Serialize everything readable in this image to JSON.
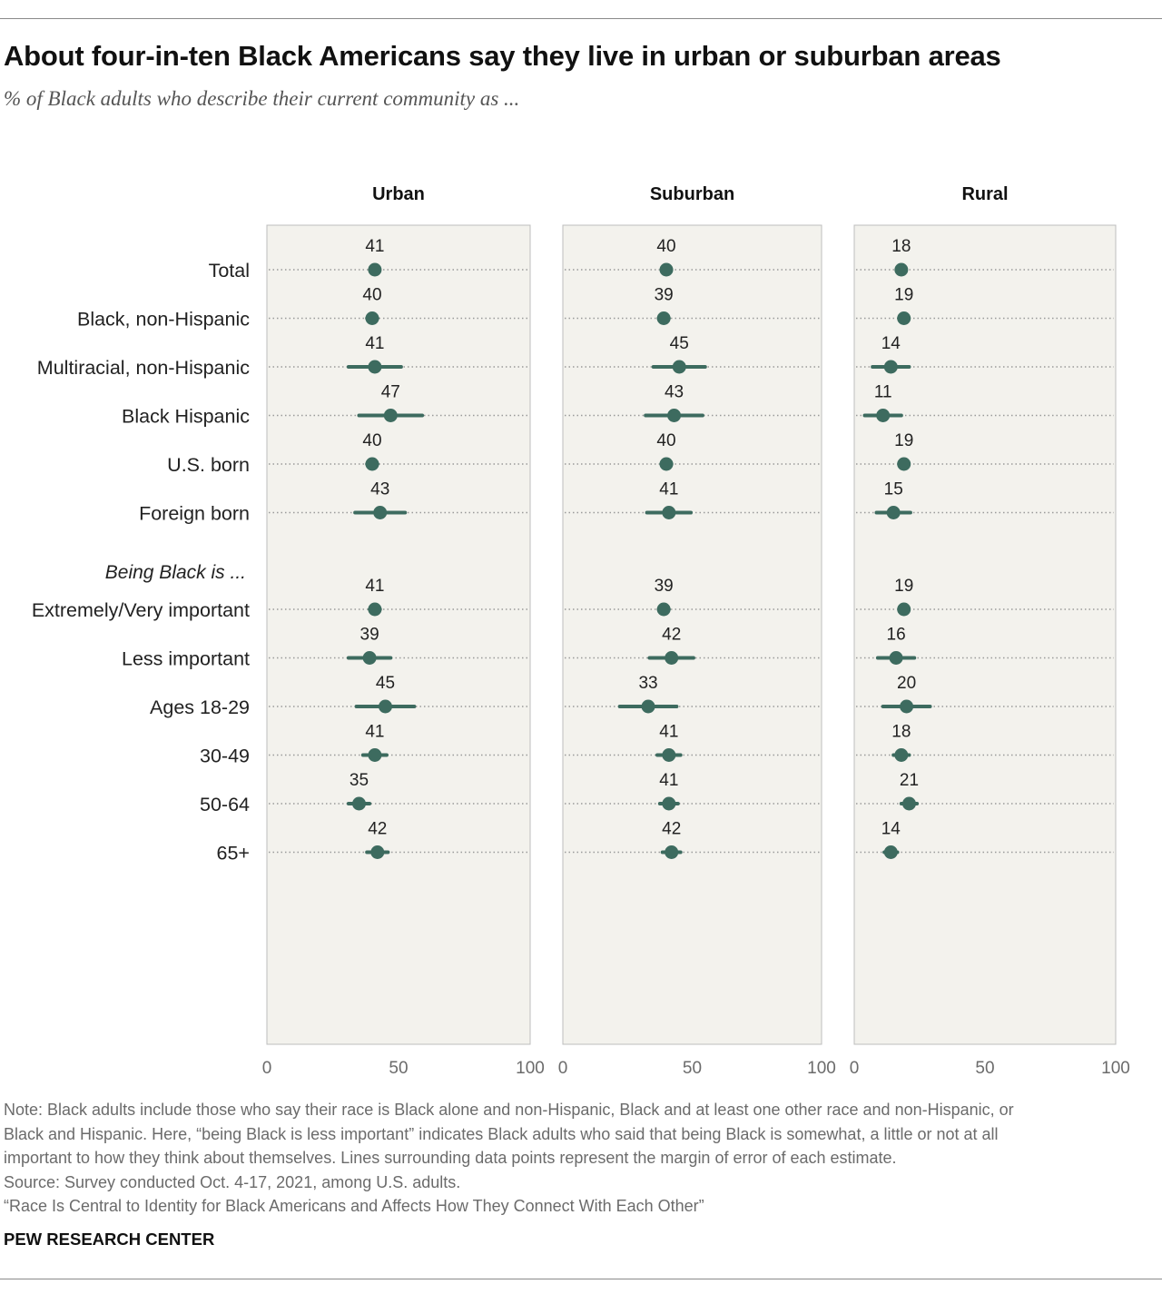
{
  "title": "About four-in-ten Black Americans say they live in urban or suburban areas",
  "subtitle": "% of Black adults who describe their current community as ...",
  "chart_data": {
    "type": "dot_plot_with_error_bars",
    "panels": [
      "Urban",
      "Suburban",
      "Rural"
    ],
    "x_ticks": [
      "0",
      "50",
      "100"
    ],
    "xlim": [
      0,
      100
    ],
    "groups": [
      {
        "label": "",
        "rows": [
          {
            "label": "Total",
            "values": [
              41,
              40,
              18
            ],
            "moe": [
              1.7,
              1.9,
              1.6
            ]
          }
        ]
      },
      {
        "label": "",
        "rows": [
          {
            "label": "Black, non-Hispanic",
            "values": [
              40,
              39,
              19
            ],
            "moe": [
              2,
              2,
              1.9
            ]
          },
          {
            "label": "Multiracial, non-Hispanic",
            "values": [
              41,
              45,
              14
            ],
            "moe": [
              10,
              10,
              7
            ]
          },
          {
            "label": "Black Hispanic",
            "values": [
              47,
              43,
              11
            ],
            "moe": [
              12,
              11,
              7
            ]
          }
        ]
      },
      {
        "label": "",
        "rows": [
          {
            "label": "U.S. born",
            "values": [
              40,
              40,
              19
            ],
            "moe": [
              2,
              2,
              1.7
            ]
          },
          {
            "label": "Foreign born",
            "values": [
              43,
              41,
              15
            ],
            "moe": [
              9.5,
              8.5,
              6.5
            ]
          }
        ]
      },
      {
        "label": "Being Black is ...",
        "rows": [
          {
            "label": "Extremely/Very important",
            "values": [
              41,
              39,
              19
            ],
            "moe": [
              2,
              2,
              1.7
            ]
          },
          {
            "label": "Less important",
            "values": [
              39,
              42,
              16
            ],
            "moe": [
              8,
              8.5,
              7
            ]
          }
        ]
      },
      {
        "label": "",
        "rows": [
          {
            "label": "Ages 18-29",
            "values": [
              45,
              33,
              20
            ],
            "moe": [
              11,
              11,
              9
            ]
          },
          {
            "label": "30-49",
            "values": [
              41,
              41,
              18
            ],
            "moe": [
              4.5,
              4.5,
              3
            ]
          },
          {
            "label": "50-64",
            "values": [
              35,
              41,
              21
            ],
            "moe": [
              4,
              3.5,
              3
            ]
          },
          {
            "label": "65+",
            "values": [
              42,
              42,
              14
            ],
            "moe": [
              4,
              3.5,
              2.5
            ]
          }
        ]
      }
    ]
  },
  "notes": [
    "Note: Black adults include those who say their race is Black alone and non-Hispanic, Black and at least one other race and non-Hispanic, or",
    "Black and Hispanic. Here, “being Black is less important” indicates Black adults who said that being Black is somewhat, a little or not at all",
    "important to how they think about themselves. Lines surrounding data points represent the margin of error of each estimate.",
    "Source: Survey conducted Oct. 4-17, 2021, among U.S. adults.",
    "“Race Is Central to Identity for Black Americans and Affects How They Connect With Each Other”"
  ],
  "brand": "PEW RESEARCH CENTER",
  "colors": {
    "dot": "#3d6b5f",
    "panel_bg": "#f3f2ed",
    "panel_border": "#bdbdbd",
    "dotted_line": "#9a9a9a",
    "text": "#222222"
  }
}
